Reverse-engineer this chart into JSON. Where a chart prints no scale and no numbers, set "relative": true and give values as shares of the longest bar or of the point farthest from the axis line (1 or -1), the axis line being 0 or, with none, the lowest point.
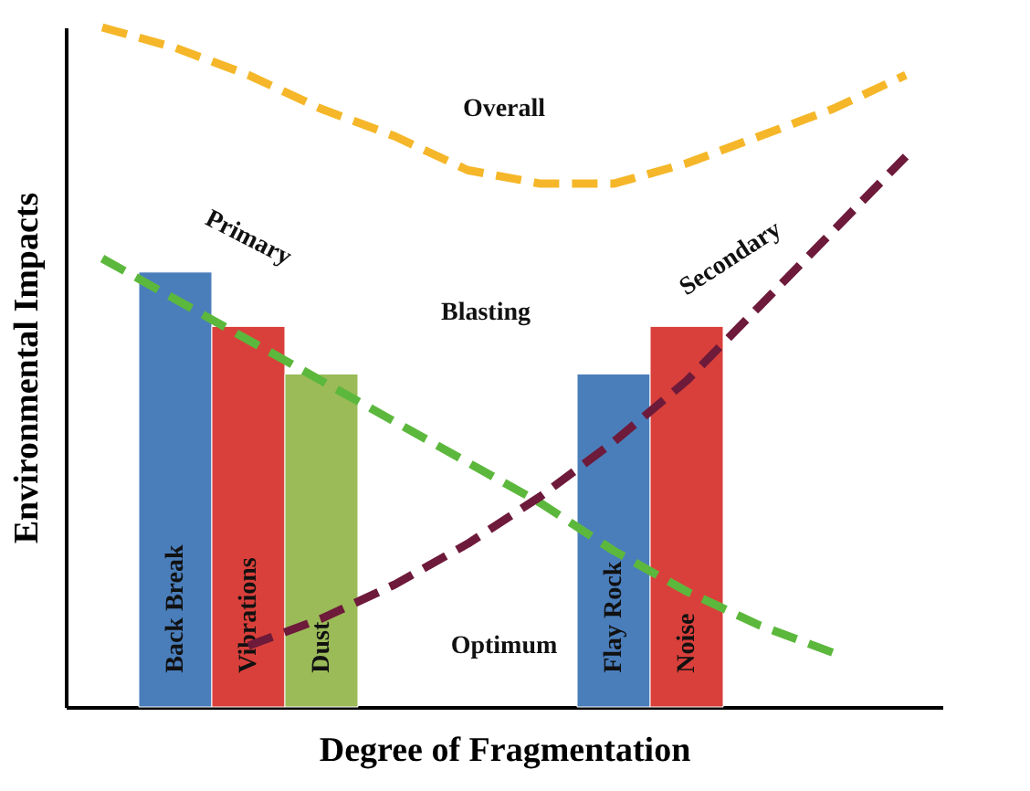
{
  "chart_data": {
    "type": "bar",
    "relative": true,
    "xlabel": "Degree of Fragmentation",
    "ylabel": "Environmental Impacts",
    "categories": [
      null,
      "Back Break",
      "Vibrations",
      "Dust",
      null,
      null,
      null,
      "Flay Rock",
      "Noise",
      null,
      null,
      null
    ],
    "values": [
      null,
      0.64,
      0.56,
      0.49,
      null,
      null,
      null,
      0.49,
      0.56,
      null,
      null,
      null
    ],
    "colors": [
      null,
      "#4a7ebb",
      "#d9403b",
      "#9bbb59",
      null,
      null,
      null,
      "#4a7ebb",
      "#d9403b",
      null,
      null,
      null
    ],
    "series": [
      {
        "type": "line",
        "name": "Overall",
        "color": "#f5b729",
        "values": [
          1.0,
          0.97,
          0.93,
          0.88,
          0.84,
          0.79,
          0.77,
          0.77,
          0.8,
          0.84,
          0.88,
          0.93
        ]
      },
      {
        "type": "line",
        "name": "Primary",
        "color": "#5cb83c",
        "values": [
          0.66,
          0.6,
          0.54,
          0.48,
          0.42,
          0.36,
          0.3,
          0.23,
          0.17,
          0.12,
          0.08,
          null
        ]
      },
      {
        "type": "line",
        "name": "Secondary",
        "color": "#6e1a3a",
        "values": [
          null,
          null,
          0.09,
          0.13,
          0.18,
          0.24,
          0.31,
          0.39,
          0.48,
          0.59,
          0.7,
          0.81
        ]
      }
    ],
    "line_style": "dashed",
    "legend": false,
    "grid": false,
    "tick_labels": false,
    "annotations": [
      "Blasting",
      "Optimum"
    ]
  }
}
